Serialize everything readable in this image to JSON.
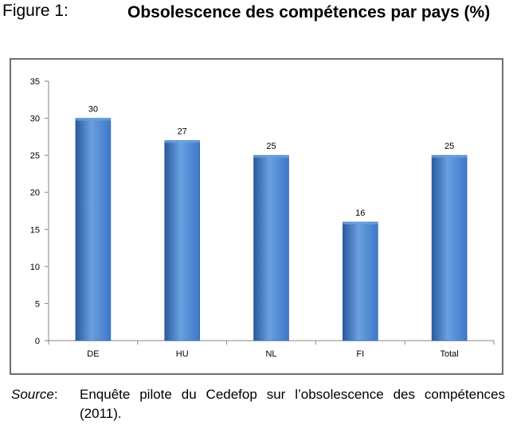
{
  "figure": {
    "label": "Figure 1:",
    "title": "Obsolescence des compétences par pays (%)"
  },
  "source": {
    "label": "Source",
    "colon": ":",
    "text": "Enquête pilote du Cedefop sur l’obsolescence des compétences (2011)."
  },
  "colors": {
    "bar": "#3d78c8",
    "bar_dark": "#2a5aa0",
    "bar_light": "#6aa0e0",
    "axis": "#868686"
  },
  "chart_data": {
    "type": "bar",
    "title": "",
    "xlabel": "",
    "ylabel": "",
    "categories": [
      "DE",
      "HU",
      "NL",
      "FI",
      "Total"
    ],
    "values": [
      30,
      27,
      25,
      16,
      25
    ],
    "data_labels": [
      "30",
      "27",
      "25",
      "16",
      "25"
    ],
    "ylim": [
      0,
      35
    ],
    "yticks": [
      0,
      5,
      10,
      15,
      20,
      25,
      30,
      35
    ],
    "grid": false,
    "legend": "none"
  }
}
